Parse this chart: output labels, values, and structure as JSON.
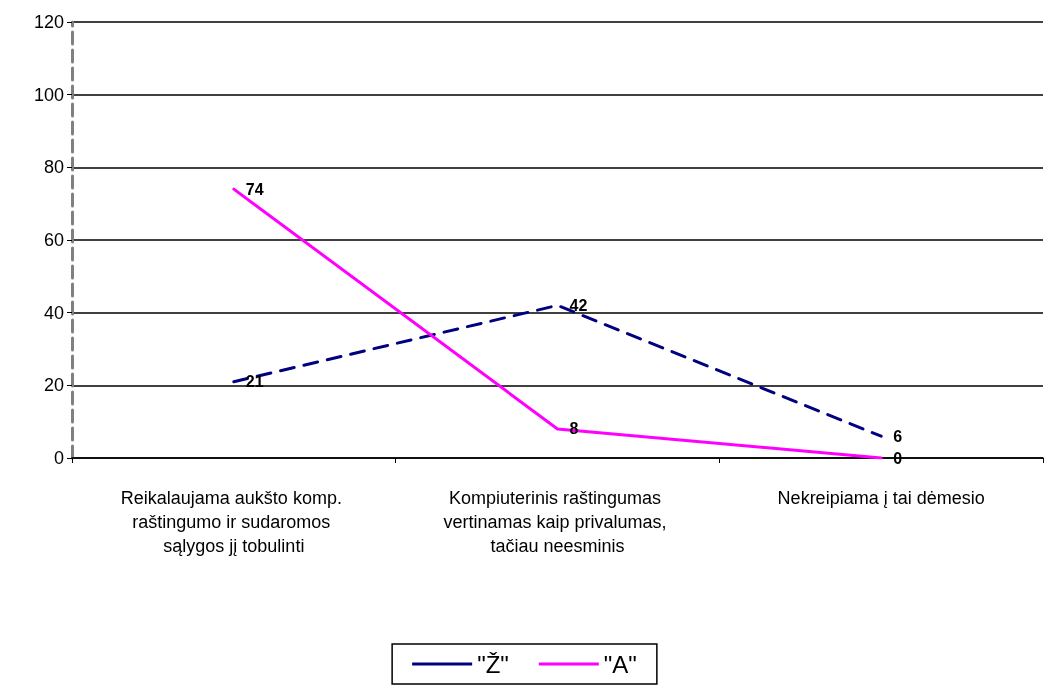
{
  "chart_data": {
    "type": "line",
    "categories": [
      "Reikalaujama aukšto komp. raštingumo ir sudaromos sąlygos jį tobulinti",
      "Kompiuterinis raštingumas vertinamas kaip privalumas, tačiau neesminis",
      "Nekreipiama į tai dėmesio"
    ],
    "series": [
      {
        "name": "\"Ž\"",
        "color": "#000080",
        "line_style": "dashed",
        "values": [
          21,
          42,
          6
        ]
      },
      {
        "name": "\"A\"",
        "color": "#ff00ff",
        "line_style": "solid",
        "values": [
          74,
          8,
          0
        ]
      }
    ],
    "ylim": [
      0,
      120
    ],
    "yticks": [
      0,
      20,
      40,
      60,
      80,
      100,
      120
    ],
    "grid": "y",
    "legend": "bottom",
    "marker": "none",
    "data_labels": true
  }
}
